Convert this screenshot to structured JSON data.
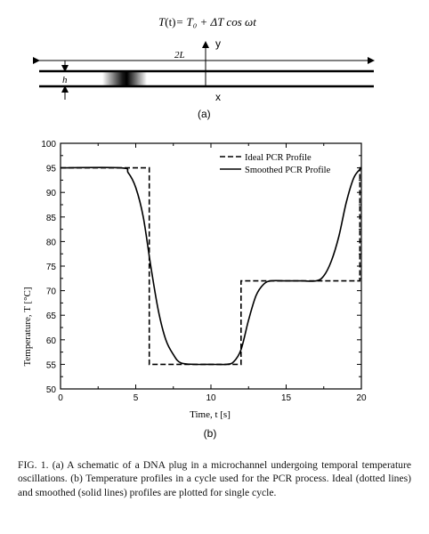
{
  "figure_a": {
    "equation_left": "T",
    "equation_paren": "(t)",
    "equation_right": "= T₀ + ΔT cos ωt",
    "length_label": "2L",
    "height_label": "h",
    "x_axis_label": "x",
    "y_axis_label": "y",
    "panel_label": "(a)"
  },
  "figure_b": {
    "panel_label": "(b)"
  },
  "chart_data": {
    "type": "line",
    "title": "",
    "xlabel": "Time, t [s]",
    "ylabel": "Temperature, T [°C]",
    "xlim": [
      0,
      20
    ],
    "ylim": [
      50,
      100
    ],
    "x_ticks": [
      0,
      5,
      10,
      15,
      20
    ],
    "y_ticks": [
      50,
      55,
      60,
      65,
      70,
      75,
      80,
      85,
      90,
      95,
      100
    ],
    "legend_position": "top-right",
    "grid": false,
    "series": [
      {
        "name": "Ideal PCR Profile",
        "style": "dashed",
        "color": "#000000",
        "x": [
          0,
          5.9,
          5.9,
          12,
          12,
          19.9,
          19.9,
          20
        ],
        "y": [
          95,
          95,
          55,
          55,
          72,
          72,
          95,
          95
        ]
      },
      {
        "name": "Smoothed PCR Profile",
        "style": "solid",
        "color": "#000000",
        "x": [
          0,
          4,
          4.5,
          5,
          5.5,
          6,
          6.5,
          7,
          7.5,
          8,
          9,
          10,
          11,
          11.5,
          12,
          12.5,
          13,
          13.5,
          14,
          15,
          16,
          17,
          17.5,
          18,
          18.5,
          19,
          19.5,
          20
        ],
        "y": [
          95,
          95,
          94,
          91,
          85,
          75,
          66,
          60,
          57,
          55.3,
          55,
          55,
          55,
          55.5,
          58,
          64,
          69,
          71.3,
          72,
          72,
          72,
          72,
          73,
          76,
          81,
          88,
          93,
          95
        ]
      }
    ]
  },
  "caption": {
    "label": "FIG. 1.",
    "text": " (a) A schematic of a DNA plug in a microchannel undergoing temporal temperature oscillations. (b) Temperature profiles in a cycle used for the PCR process. Ideal (dotted lines) and smoothed (solid lines) profiles are plotted for single cycle."
  }
}
